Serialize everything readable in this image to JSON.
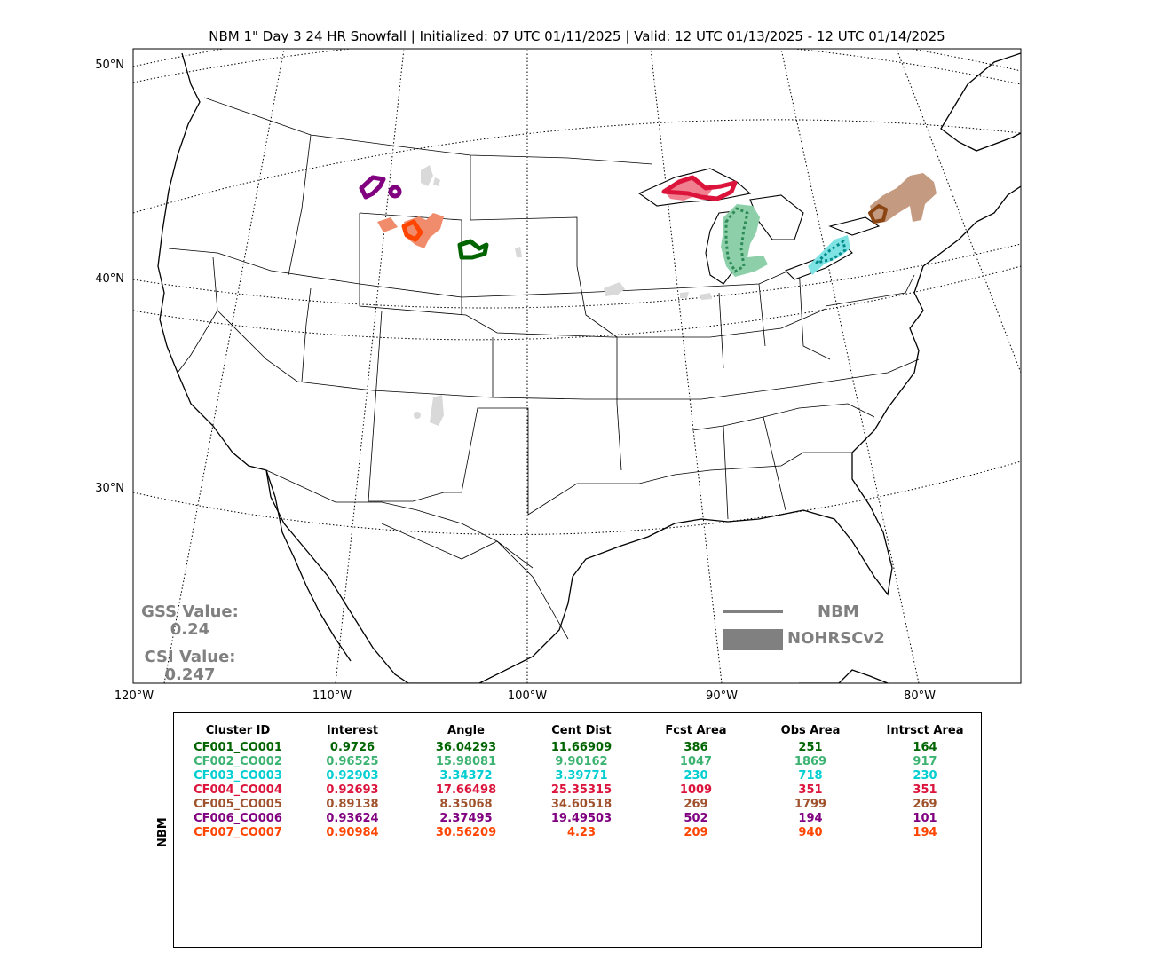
{
  "title": "NBM 1\" Day 3 24 HR Snowfall | Initialized: 07 UTC 01/11/2025 | Valid: 12 UTC 01/13/2025 - 12 UTC 01/14/2025",
  "lat_labels": [
    "50°N",
    "40°N",
    "30°N"
  ],
  "lon_labels": [
    "120°W",
    "110°W",
    "100°W",
    "90°W",
    "80°W"
  ],
  "stats": {
    "gss_label": "GSS Value:",
    "gss_value": "0.24",
    "csi_label": "CSI Value:",
    "csi_value": "0.247"
  },
  "legend": {
    "line_label": "NBM",
    "fill_label": "NOHRSCv2"
  },
  "table": {
    "side_label": "NBM",
    "columns": [
      "Cluster ID",
      "Interest",
      "Angle",
      "Cent Dist",
      "Fcst Area",
      "Obs Area",
      "Intrsct Area"
    ],
    "rows": [
      {
        "color": "#006400",
        "cells": [
          "CF001_CO001",
          "0.9726",
          "36.04293",
          "11.66909",
          "386",
          "251",
          "164"
        ]
      },
      {
        "color": "#3cb371",
        "cells": [
          "CF002_CO002",
          "0.96525",
          "15.98081",
          "9.90162",
          "1047",
          "1869",
          "917"
        ]
      },
      {
        "color": "#00ced1",
        "cells": [
          "CF003_CO003",
          "0.92903",
          "3.34372",
          "3.39771",
          "230",
          "718",
          "230"
        ]
      },
      {
        "color": "#dc143c",
        "cells": [
          "CF004_CO004",
          "0.92693",
          "17.66498",
          "25.35315",
          "1009",
          "351",
          "351"
        ]
      },
      {
        "color": "#a0522d",
        "cells": [
          "CF005_CO005",
          "0.89138",
          "8.35068",
          "34.60518",
          "269",
          "1799",
          "269"
        ]
      },
      {
        "color": "#800080",
        "cells": [
          "CF006_CO006",
          "0.93624",
          "2.37495",
          "19.49503",
          "502",
          "194",
          "101"
        ]
      },
      {
        "color": "#ff4500",
        "cells": [
          "CF007_CO007",
          "0.90984",
          "30.56209",
          "4.23",
          "209",
          "940",
          "194"
        ]
      }
    ]
  },
  "colors": {
    "cluster1": "#006400",
    "cluster2": "#3cb371",
    "cluster3": "#00ced1",
    "cluster4": "#dc143c",
    "cluster5": "#a0522d",
    "cluster6": "#800080",
    "cluster7": "#ff4500",
    "unmatched": "#d9d9d9",
    "legend": "#808080"
  }
}
